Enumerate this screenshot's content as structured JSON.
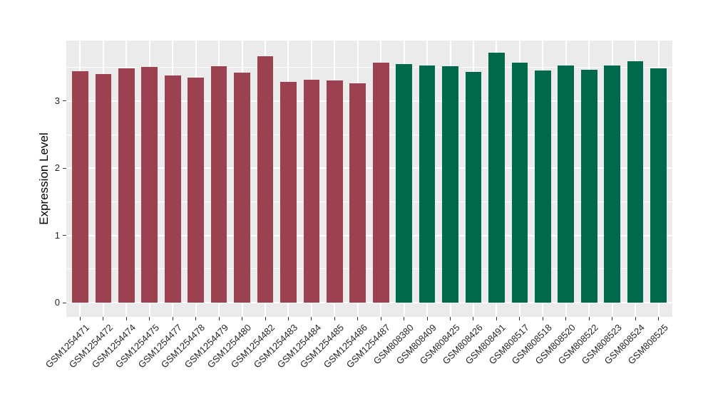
{
  "chart_data": {
    "type": "bar",
    "title": "",
    "xlabel": "",
    "ylabel": "Expression Level",
    "ylim": [
      0,
      3.9
    ],
    "yticks": [
      0,
      1,
      2,
      3
    ],
    "ytick_labels": [
      "0",
      "1",
      "2",
      "3"
    ],
    "yticks_minor": [
      0.5,
      1.5,
      2.5,
      3.5
    ],
    "grid": true,
    "legend": "none",
    "panel_bg": "#EBEBEB",
    "gridline_color": "#FFFFFF",
    "group_colors": {
      "GSM1254xxx": "#9C4150",
      "GSM808xxx": "#00694B"
    },
    "bars": [
      {
        "label": "GSM1254471",
        "value": 3.44,
        "color": "#9C4150"
      },
      {
        "label": "GSM1254472",
        "value": 3.4,
        "color": "#9C4150"
      },
      {
        "label": "GSM1254474",
        "value": 3.48,
        "color": "#9C4150"
      },
      {
        "label": "GSM1254475",
        "value": 3.51,
        "color": "#9C4150"
      },
      {
        "label": "GSM1254477",
        "value": 3.38,
        "color": "#9C4150"
      },
      {
        "label": "GSM1254478",
        "value": 3.35,
        "color": "#9C4150"
      },
      {
        "label": "GSM1254479",
        "value": 3.52,
        "color": "#9C4150"
      },
      {
        "label": "GSM1254480",
        "value": 3.42,
        "color": "#9C4150"
      },
      {
        "label": "GSM1254482",
        "value": 3.67,
        "color": "#9C4150"
      },
      {
        "label": "GSM1254483",
        "value": 3.28,
        "color": "#9C4150"
      },
      {
        "label": "GSM1254484",
        "value": 3.32,
        "color": "#9C4150"
      },
      {
        "label": "GSM1254485",
        "value": 3.3,
        "color": "#9C4150"
      },
      {
        "label": "GSM1254486",
        "value": 3.26,
        "color": "#9C4150"
      },
      {
        "label": "GSM1254487",
        "value": 3.57,
        "color": "#9C4150"
      },
      {
        "label": "GSM808380",
        "value": 3.55,
        "color": "#00694B"
      },
      {
        "label": "GSM808409",
        "value": 3.53,
        "color": "#00694B"
      },
      {
        "label": "GSM808425",
        "value": 3.52,
        "color": "#00694B"
      },
      {
        "label": "GSM808426",
        "value": 3.43,
        "color": "#00694B"
      },
      {
        "label": "GSM808491",
        "value": 3.72,
        "color": "#00694B"
      },
      {
        "label": "GSM808517",
        "value": 3.57,
        "color": "#00694B"
      },
      {
        "label": "GSM808518",
        "value": 3.45,
        "color": "#00694B"
      },
      {
        "label": "GSM808520",
        "value": 3.53,
        "color": "#00694B"
      },
      {
        "label": "GSM808522",
        "value": 3.46,
        "color": "#00694B"
      },
      {
        "label": "GSM808523",
        "value": 3.53,
        "color": "#00694B"
      },
      {
        "label": "GSM808524",
        "value": 3.59,
        "color": "#00694B"
      },
      {
        "label": "GSM808525",
        "value": 3.48,
        "color": "#00694B"
      }
    ]
  }
}
